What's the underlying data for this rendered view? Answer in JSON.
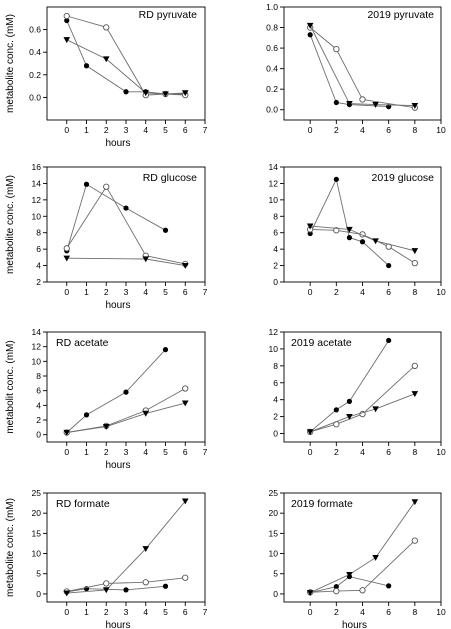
{
  "chart_data": [
    {
      "type": "line",
      "title": "RD pyruvate",
      "xlabel": "hours",
      "ylabel": "metabolite conc. (mM)",
      "xlim": [
        -1,
        7
      ],
      "ylim": [
        -0.2,
        0.8
      ],
      "xticks": [
        0,
        1,
        2,
        3,
        4,
        5,
        6,
        7
      ],
      "yticks": [
        0.0,
        0.2,
        0.4,
        0.6
      ],
      "ytick_labels": [
        "0.0",
        "0.2",
        "0.4",
        "0.6"
      ],
      "series": [
        {
          "marker": "filled-circle",
          "x": [
            0,
            1,
            3,
            4,
            5,
            6
          ],
          "y": [
            0.68,
            0.28,
            0.05,
            0.05,
            0.03,
            0.03
          ]
        },
        {
          "marker": "open-circle",
          "x": [
            0,
            2,
            4,
            5,
            6
          ],
          "y": [
            0.72,
            0.62,
            0.02,
            0.03,
            0.02
          ]
        },
        {
          "marker": "filled-triangle",
          "x": [
            0,
            2,
            4,
            5,
            6
          ],
          "y": [
            0.51,
            0.34,
            0.04,
            0.03,
            0.04
          ]
        }
      ]
    },
    {
      "type": "line",
      "title": "2019 pyruvate",
      "xlabel": "",
      "ylabel": "",
      "xlim": [
        -2,
        10
      ],
      "ylim": [
        -0.1,
        1.0
      ],
      "xticks": [
        0,
        2,
        4,
        6,
        8,
        10
      ],
      "yticks": [
        0.0,
        0.2,
        0.4,
        0.6,
        0.8,
        1.0
      ],
      "ytick_labels": [
        "0.0",
        "0.2",
        "0.4",
        "0.6",
        "0.8",
        "1.0"
      ],
      "series": [
        {
          "marker": "filled-circle",
          "x": [
            0,
            2,
            3,
            6
          ],
          "y": [
            0.73,
            0.07,
            0.05,
            0.03
          ]
        },
        {
          "marker": "open-circle",
          "x": [
            0,
            2,
            4,
            8
          ],
          "y": [
            0.8,
            0.59,
            0.1,
            0.02
          ]
        },
        {
          "marker": "filled-triangle",
          "x": [
            0,
            3,
            5,
            8
          ],
          "y": [
            0.82,
            0.06,
            0.05,
            0.04
          ]
        }
      ]
    },
    {
      "type": "line",
      "title": "RD glucose",
      "xlabel": "hours",
      "ylabel": "metabolite conc. (mM)",
      "xlim": [
        -1,
        7
      ],
      "ylim": [
        2,
        16
      ],
      "xticks": [
        0,
        1,
        2,
        3,
        4,
        5,
        6,
        7
      ],
      "yticks": [
        2,
        4,
        6,
        8,
        10,
        12,
        14,
        16
      ],
      "ytick_labels": [
        "2",
        "4",
        "6",
        "8",
        "10",
        "12",
        "14",
        "16"
      ],
      "series": [
        {
          "marker": "filled-circle",
          "x": [
            0,
            1,
            3,
            5
          ],
          "y": [
            5.8,
            13.9,
            11.0,
            8.3
          ]
        },
        {
          "marker": "open-circle",
          "x": [
            0,
            2,
            4,
            6
          ],
          "y": [
            6.1,
            13.6,
            5.2,
            4.2
          ]
        },
        {
          "marker": "filled-triangle",
          "x": [
            0,
            4,
            6
          ],
          "y": [
            4.9,
            4.8,
            4.0
          ]
        }
      ]
    },
    {
      "type": "line",
      "title": "2019 glucose",
      "xlabel": "",
      "ylabel": "",
      "xlim": [
        -2,
        10
      ],
      "ylim": [
        0,
        14
      ],
      "xticks": [
        0,
        2,
        4,
        6,
        8,
        10
      ],
      "yticks": [
        0,
        2,
        4,
        6,
        8,
        10,
        12,
        14
      ],
      "ytick_labels": [
        "0",
        "2",
        "4",
        "6",
        "8",
        "10",
        "12",
        "14"
      ],
      "series": [
        {
          "marker": "filled-circle",
          "x": [
            0,
            2,
            3,
            4,
            6
          ],
          "y": [
            5.9,
            12.5,
            5.4,
            4.9,
            2.0
          ]
        },
        {
          "marker": "open-circle",
          "x": [
            0,
            2,
            4,
            6,
            8
          ],
          "y": [
            6.4,
            6.3,
            5.8,
            4.3,
            2.3
          ]
        },
        {
          "marker": "filled-triangle",
          "x": [
            0,
            3,
            5,
            8
          ],
          "y": [
            6.8,
            6.4,
            5.0,
            3.8
          ]
        }
      ]
    },
    {
      "type": "line",
      "title": "RD acetate",
      "xlabel": "hours",
      "ylabel": "metabolit conc. (mM)",
      "xlim": [
        -1,
        7
      ],
      "ylim": [
        -1,
        14
      ],
      "xticks": [
        0,
        1,
        2,
        3,
        4,
        5,
        6,
        7
      ],
      "yticks": [
        0,
        2,
        4,
        6,
        8,
        10,
        12,
        14
      ],
      "ytick_labels": [
        "0",
        "2",
        "4",
        "6",
        "8",
        "10",
        "12",
        "14"
      ],
      "series": [
        {
          "marker": "filled-circle",
          "x": [
            0,
            1,
            3,
            5
          ],
          "y": [
            0.3,
            2.7,
            5.8,
            11.6
          ]
        },
        {
          "marker": "open-circle",
          "x": [
            0,
            2,
            4,
            6
          ],
          "y": [
            0.3,
            1.2,
            3.3,
            6.3
          ]
        },
        {
          "marker": "filled-triangle",
          "x": [
            0,
            2,
            4,
            6
          ],
          "y": [
            0.3,
            1.1,
            2.9,
            4.3
          ]
        }
      ]
    },
    {
      "type": "line",
      "title": "2019 acetate",
      "xlabel": "",
      "ylabel": "",
      "xlim": [
        -2,
        10
      ],
      "ylim": [
        -1,
        12
      ],
      "xticks": [
        0,
        2,
        4,
        6,
        8,
        10
      ],
      "yticks": [
        0,
        2,
        4,
        6,
        8,
        10,
        12
      ],
      "ytick_labels": [
        "0",
        "2",
        "4",
        "6",
        "8",
        "10",
        "12"
      ],
      "series": [
        {
          "marker": "filled-circle",
          "x": [
            0,
            2,
            3,
            6
          ],
          "y": [
            0.2,
            2.8,
            3.8,
            11.0
          ]
        },
        {
          "marker": "open-circle",
          "x": [
            0,
            2,
            4,
            8
          ],
          "y": [
            0.2,
            1.1,
            2.3,
            8.0
          ]
        },
        {
          "marker": "filled-triangle",
          "x": [
            0,
            3,
            5,
            8
          ],
          "y": [
            0.2,
            2.0,
            2.9,
            4.7
          ]
        }
      ]
    },
    {
      "type": "line",
      "title": "RD formate",
      "xlabel": "hours",
      "ylabel": "metabolite conc. (mM)",
      "xlim": [
        -1,
        7
      ],
      "ylim": [
        -2,
        25
      ],
      "xticks": [
        0,
        1,
        2,
        3,
        4,
        5,
        6,
        7
      ],
      "yticks": [
        0,
        5,
        10,
        15,
        20,
        25
      ],
      "ytick_labels": [
        "0",
        "5",
        "10",
        "15",
        "20",
        "25"
      ],
      "series": [
        {
          "marker": "filled-circle",
          "x": [
            0,
            1,
            3,
            5
          ],
          "y": [
            0.5,
            1.3,
            1.0,
            1.9
          ]
        },
        {
          "marker": "open-circle",
          "x": [
            0,
            2,
            4,
            6
          ],
          "y": [
            0.6,
            2.6,
            2.9,
            4.0
          ]
        },
        {
          "marker": "filled-triangle",
          "x": [
            0,
            2,
            4,
            6
          ],
          "y": [
            0.2,
            1.0,
            11.2,
            23.0
          ]
        }
      ]
    },
    {
      "type": "line",
      "title": "2019 formate",
      "xlabel": "hours",
      "ylabel": "",
      "xlim": [
        -2,
        10
      ],
      "ylim": [
        -2,
        25
      ],
      "xticks": [
        0,
        2,
        4,
        6,
        8,
        10
      ],
      "yticks": [
        0,
        5,
        10,
        15,
        20,
        25
      ],
      "ytick_labels": [
        "0",
        "5",
        "10",
        "15",
        "20",
        "25"
      ],
      "series": [
        {
          "marker": "filled-circle",
          "x": [
            0,
            2,
            3,
            6
          ],
          "y": [
            0.3,
            1.8,
            4.3,
            2.0
          ]
        },
        {
          "marker": "open-circle",
          "x": [
            0,
            2,
            4,
            8
          ],
          "y": [
            0.4,
            0.7,
            0.9,
            13.2
          ]
        },
        {
          "marker": "filled-triangle",
          "x": [
            0,
            3,
            5,
            8
          ],
          "y": [
            0.3,
            4.8,
            9.0,
            22.8
          ]
        }
      ]
    }
  ]
}
